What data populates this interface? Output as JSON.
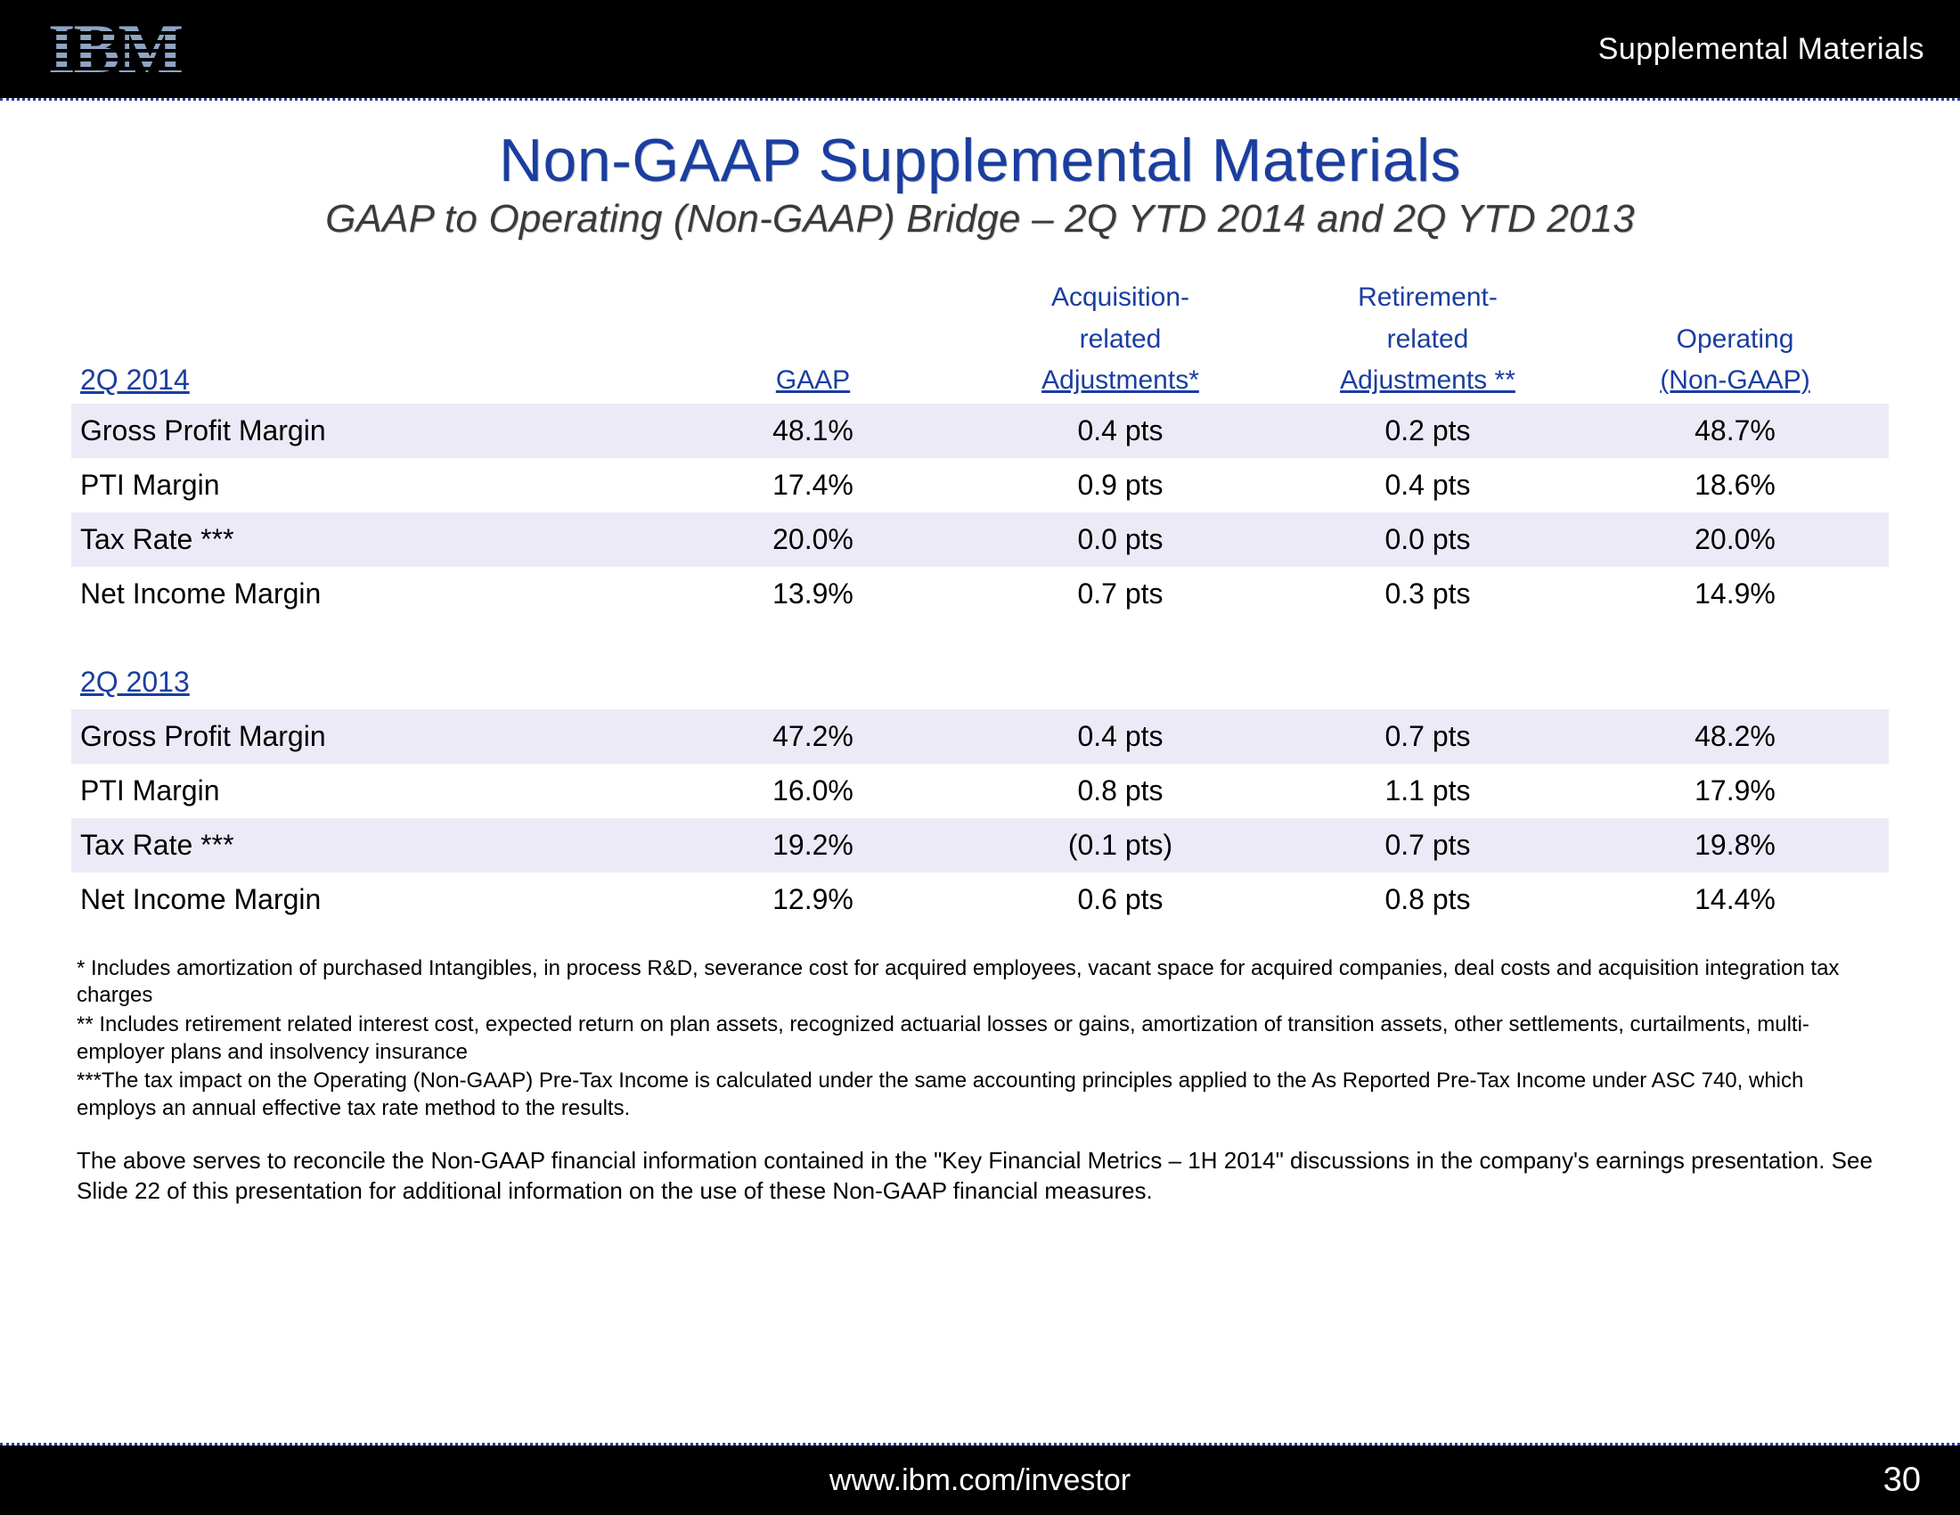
{
  "header": {
    "corner_label": "Supplemental Materials",
    "logo_bar_color": "#8fa4c4"
  },
  "title": "Non-GAAP Supplemental Materials",
  "subtitle": "GAAP to Operating (Non-GAAP) Bridge – 2Q YTD 2014 and 2Q YTD 2013",
  "columns": {
    "gaap": "GAAP",
    "acq1": "Acquisition-",
    "acq2": "related",
    "acq3": "Adjustments*",
    "ret1": "Retirement-",
    "ret2": "related",
    "ret3": "Adjustments **",
    "op1": "Operating",
    "op2": "(Non-GAAP)"
  },
  "t2014": {
    "period": "2Q 2014",
    "rows": [
      {
        "label": "Gross Profit Margin",
        "gaap": "48.1%",
        "acq": "0.4 pts",
        "ret": "0.2 pts",
        "op": "48.7%",
        "shade": true
      },
      {
        "label": "PTI Margin",
        "gaap": "17.4%",
        "acq": "0.9 pts",
        "ret": "0.4 pts",
        "op": "18.6%",
        "shade": false
      },
      {
        "label": "Tax Rate ***",
        "gaap": "20.0%",
        "acq": "0.0 pts",
        "ret": "0.0 pts",
        "op": "20.0%",
        "shade": true
      },
      {
        "label": "Net Income Margin",
        "gaap": "13.9%",
        "acq": "0.7 pts",
        "ret": "0.3 pts",
        "op": "14.9%",
        "shade": false
      }
    ]
  },
  "t2013": {
    "period": "2Q 2013",
    "rows": [
      {
        "label": "Gross Profit Margin",
        "gaap": "47.2%",
        "acq": "0.4 pts",
        "ret": "0.7 pts",
        "op": "48.2%",
        "shade": true
      },
      {
        "label": "PTI Margin",
        "gaap": "16.0%",
        "acq": "0.8 pts",
        "ret": "1.1 pts",
        "op": "17.9%",
        "shade": false
      },
      {
        "label": "Tax Rate ***",
        "gaap": "19.2%",
        "acq": "(0.1 pts)",
        "ret": "0.7 pts",
        "op": "19.8%",
        "shade": true
      },
      {
        "label": "Net Income Margin",
        "gaap": "12.9%",
        "acq": "0.6 pts",
        "ret": "0.8 pts",
        "op": "14.4%",
        "shade": false
      }
    ]
  },
  "footnotes": {
    "f1": "* Includes amortization of purchased Intangibles, in process R&D, severance cost for acquired employees, vacant space for acquired companies, deal costs and acquisition integration tax charges",
    "f2": "** Includes retirement related interest cost, expected return on plan assets, recognized actuarial losses or gains, amortization of transition assets, other settlements, curtailments, multi-employer plans and insolvency insurance",
    "f3": "***The tax impact on the Operating (Non-GAAP) Pre-Tax Income is calculated under the same accounting principles applied to the As Reported Pre-Tax Income under ASC 740, which employs an annual effective tax rate method to the results."
  },
  "reconcile": "The above serves to reconcile the Non-GAAP financial information contained in the \"Key Financial Metrics – 1H 2014\" discussions in the company's earnings presentation. See Slide 22 of this presentation for additional information on the use of these Non-GAAP financial measures.",
  "footer": {
    "url": "www.ibm.com/investor",
    "page": "30"
  },
  "colors": {
    "brand_blue": "#1a3ea0",
    "row_shade": "#eceaf6",
    "rule_blue": "#2b3d8f",
    "black": "#000000",
    "white": "#ffffff"
  }
}
